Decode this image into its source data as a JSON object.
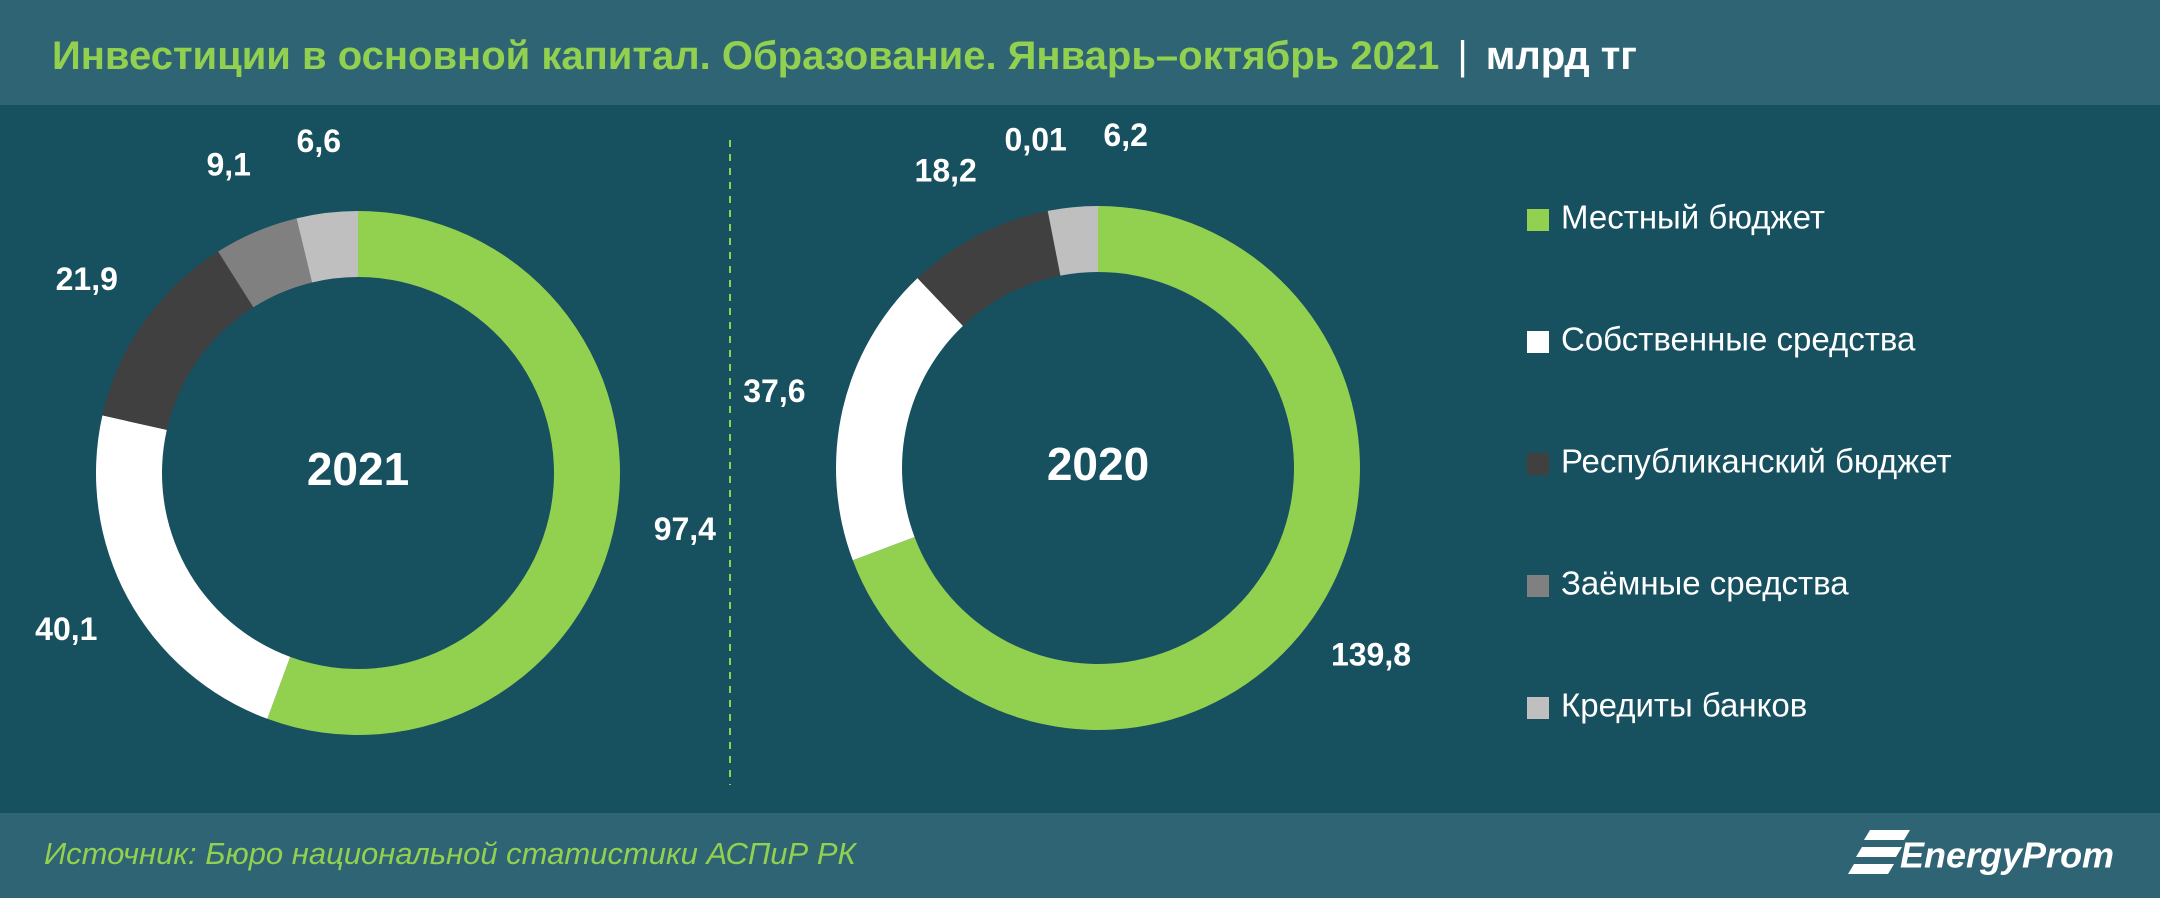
{
  "title": "Инвестиции в основной капитал. Образование. Январь–октябрь 2021",
  "unit": "млрд тг",
  "source": "Источник: Бюро национальной статистики АСПиР РК",
  "logo": "EnergyProm",
  "chart_data": [
    {
      "type": "donut",
      "center_label": "2021",
      "categories": [
        "Местный бюджет",
        "Собственные средства",
        "Республиканский бюджет",
        "Заёмные средства",
        "Кредиты банков"
      ],
      "colors": [
        "#92d050",
        "#ffffff",
        "#404040",
        "#808080",
        "#bfbfbf"
      ],
      "values": [
        97.4,
        40.1,
        21.9,
        9.1,
        6.6
      ],
      "value_labels": [
        "97,4",
        "40,1",
        "21,9",
        "9,1",
        "6,6"
      ]
    },
    {
      "type": "donut",
      "center_label": "2020",
      "categories": [
        "Местный бюджет",
        "Собственные средства",
        "Республиканский бюджет",
        "Заёмные средства",
        "Кредиты банков"
      ],
      "colors": [
        "#92d050",
        "#ffffff",
        "#404040",
        "#808080",
        "#bfbfbf"
      ],
      "values": [
        139.8,
        37.6,
        18.2,
        0.01,
        6.2
      ],
      "value_labels": [
        "139,8",
        "37,6",
        "18,2",
        "0,01",
        "6,2"
      ]
    }
  ],
  "legend": true
}
